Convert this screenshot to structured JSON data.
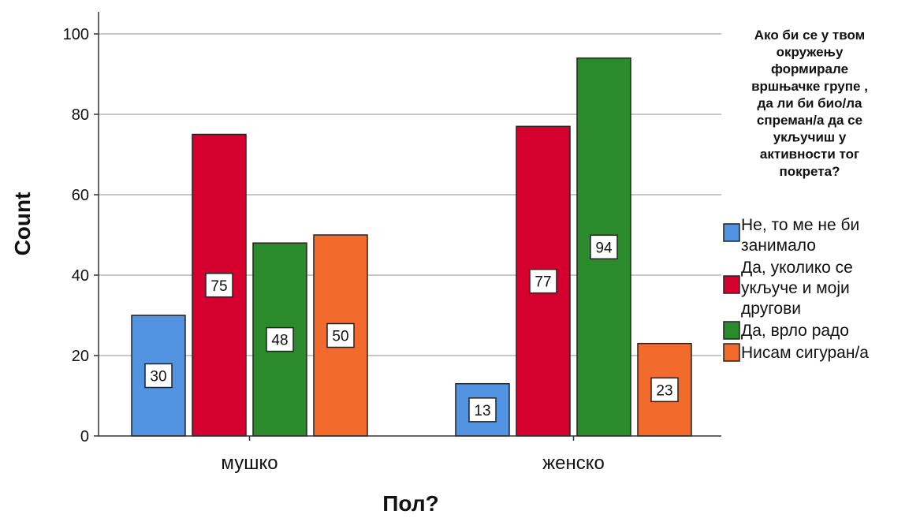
{
  "chart_data": {
    "type": "bar",
    "xlabel": "Пол?",
    "ylabel": "Count",
    "categories": [
      "мушко",
      "женско"
    ],
    "ylim": [
      0,
      100
    ],
    "yticks": [
      0,
      20,
      40,
      60,
      80,
      100
    ],
    "grid": true,
    "legend_placement": "right",
    "legend_title": [
      "Ако би се у твом",
      "окружењу",
      "формирале",
      "вршњачке групе ,",
      "да ли би био/ла",
      "спреман/а да се",
      "укључиш у",
      "активности тог",
      "покрета?"
    ],
    "series": [
      {
        "name": "Не, то ме не би занимало",
        "legend_lines": [
          "Не, то ме не би",
          "занимало"
        ],
        "color": "#5294e2",
        "values": [
          30,
          13
        ]
      },
      {
        "name": "Да, уколико се укључе и моји другови",
        "legend_lines": [
          "Да, уколико се",
          "укључе и моји",
          "другови"
        ],
        "color": "#d6002e",
        "values": [
          75,
          77
        ]
      },
      {
        "name": "Да, врло радо",
        "legend_lines": [
          "Да, врло радо"
        ],
        "color": "#2b8a2b",
        "values": [
          48,
          94
        ]
      },
      {
        "name": "Нисам сигуран/а",
        "legend_lines": [
          "Нисам сигуран/а"
        ],
        "color": "#f26a2c",
        "values": [
          50,
          23
        ]
      }
    ]
  }
}
